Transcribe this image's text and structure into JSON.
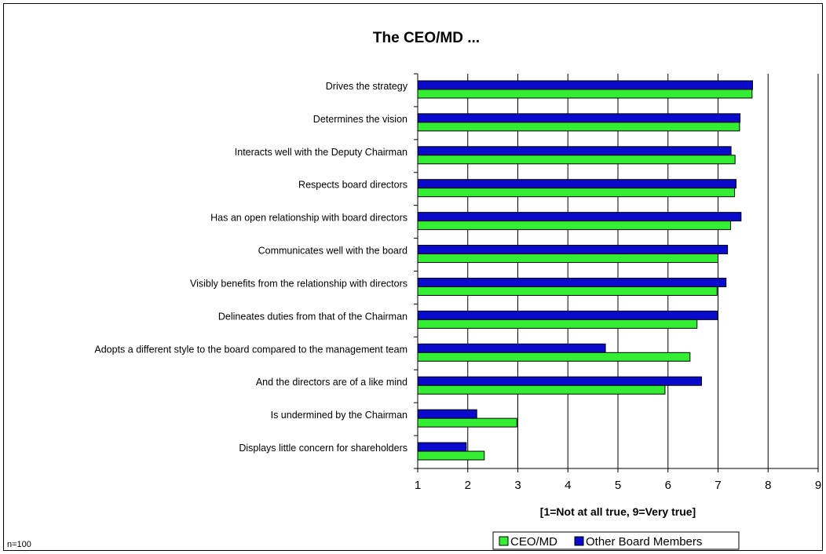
{
  "chart_data": {
    "type": "bar",
    "orientation": "horizontal",
    "title": "The CEO/MD ...",
    "xlabel": "[1=Not at all true, 9=Very true]",
    "ylabel": "",
    "xlim": [
      1,
      9
    ],
    "xticks": [
      1,
      2,
      3,
      4,
      5,
      6,
      7,
      8,
      9
    ],
    "grid": true,
    "legend_position": "bottom-right",
    "note": "n=100",
    "categories": [
      "Drives the strategy",
      "Determines the vision",
      "Interacts well with the Deputy Chairman",
      "Respects board directors ",
      "Has an open relationship with board directors",
      "Communicates well with the board",
      "Visibly benefits from the relationship with directors ",
      "Delineates duties from that of the Chairman",
      "Adopts a different style to the board compared to the management team",
      "And the directors are of a like mind",
      "Is undermined by the Chairman",
      "Displays little concern for shareholders"
    ],
    "series": [
      {
        "name": "CEO/MD",
        "color": "#33ee33",
        "values": [
          7.68,
          7.43,
          7.34,
          7.33,
          7.25,
          7.0,
          6.98,
          6.58,
          6.44,
          5.94,
          2.98,
          2.33
        ]
      },
      {
        "name": "Other Board Members",
        "color": "#0a0acc",
        "values": [
          7.69,
          7.44,
          7.26,
          7.36,
          7.46,
          7.19,
          7.16,
          6.99,
          4.75,
          6.67,
          2.18,
          1.97
        ]
      }
    ]
  }
}
